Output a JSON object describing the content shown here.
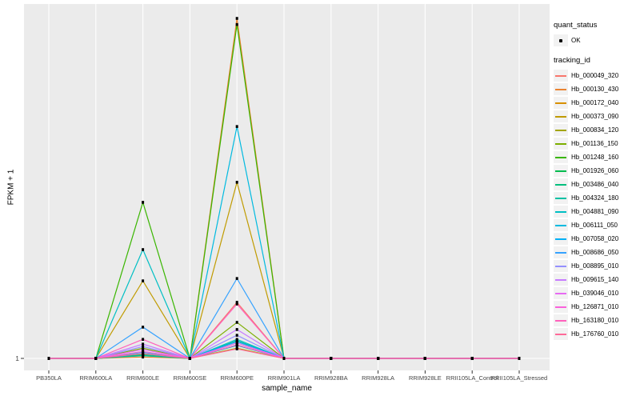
{
  "figure": {
    "y_axis_label": "FPKM + 1",
    "x_axis_label": "sample_name",
    "y_tick_label": "1"
  },
  "legend": {
    "quant_status": {
      "title": "quant_status",
      "items": [
        {
          "label": "OK",
          "symbol": "black-point"
        }
      ]
    },
    "tracking_id_title": "tracking_id"
  },
  "chart_data": {
    "type": "line",
    "title": "",
    "xlabel": "sample_name",
    "ylabel": "FPKM + 1",
    "y_axis_ticks": [
      "1"
    ],
    "y_scale_note": "Only the baseline tick '1' is labeled; series values are normalized heights where 0 = baseline (FPKM+1 = 1) and 1 = tallest peak.",
    "grid": "vertical white gridline per category plus one horizontal gridline at baseline",
    "legend_position": "right",
    "panel_bg": "#EBEBEB",
    "grid_color": "#FFFFFF",
    "point_color": "#000000",
    "categories": [
      "PB350LA",
      "RRIM600LA",
      "RRIM600LE",
      "RRIM600SE",
      "RRIM600PE",
      "RRIM901LA",
      "RRIM928BA",
      "RRIM928LA",
      "RRIM928LE",
      "RRII105LA_Control",
      "RRII105LA_Stressed"
    ],
    "series": [
      {
        "name": "Hb_000049_320",
        "color": "#F8766D",
        "values": [
          0,
          0,
          0.02,
          0,
          0.165,
          0,
          0,
          0,
          0,
          0,
          0
        ]
      },
      {
        "name": "Hb_000130_430",
        "color": "#EA8331",
        "values": [
          0,
          0,
          0.004,
          0,
          1.0,
          0,
          0,
          0,
          0,
          0,
          0
        ]
      },
      {
        "name": "Hb_000172_040",
        "color": "#D89000",
        "values": [
          0,
          0,
          0.008,
          0,
          0.04,
          0,
          0,
          0,
          0,
          0,
          0
        ]
      },
      {
        "name": "Hb_000373_090",
        "color": "#C09B00",
        "values": [
          0,
          0,
          0.228,
          0,
          0.518,
          0,
          0,
          0,
          0,
          0,
          0
        ]
      },
      {
        "name": "Hb_000834_120",
        "color": "#A3A500",
        "values": [
          0,
          0,
          0.012,
          0,
          0.03,
          0,
          0,
          0,
          0,
          0,
          0
        ]
      },
      {
        "name": "Hb_001136_150",
        "color": "#7CAE00",
        "values": [
          0,
          0,
          0.03,
          0,
          0.106,
          0,
          0,
          0,
          0,
          0,
          0
        ]
      },
      {
        "name": "Hb_001248_160",
        "color": "#39B600",
        "values": [
          0,
          0,
          0.459,
          0,
          0.982,
          0,
          0,
          0,
          0,
          0,
          0
        ]
      },
      {
        "name": "Hb_001926_060",
        "color": "#00BB4E",
        "values": [
          0,
          0,
          0.01,
          0,
          0.046,
          0,
          0,
          0,
          0,
          0,
          0
        ]
      },
      {
        "name": "Hb_003486_040",
        "color": "#00BF7D",
        "values": [
          0,
          0,
          0.01,
          0,
          0.052,
          0,
          0,
          0,
          0,
          0,
          0
        ]
      },
      {
        "name": "Hb_004324_180",
        "color": "#00C1A3",
        "values": [
          0,
          0,
          0.008,
          0,
          0.038,
          0,
          0,
          0,
          0,
          0,
          0
        ]
      },
      {
        "name": "Hb_004881_090",
        "color": "#00BFC4",
        "values": [
          0,
          0,
          0.32,
          0,
          0.056,
          0,
          0,
          0,
          0,
          0,
          0
        ]
      },
      {
        "name": "Hb_006111_050",
        "color": "#00BAE0",
        "values": [
          0,
          0,
          0.018,
          0,
          0.682,
          0,
          0,
          0,
          0,
          0,
          0
        ]
      },
      {
        "name": "Hb_007058_020",
        "color": "#00B0F6",
        "values": [
          0,
          0,
          0.014,
          0,
          0.05,
          0,
          0,
          0,
          0,
          0,
          0
        ]
      },
      {
        "name": "Hb_008686_050",
        "color": "#35A2FF",
        "values": [
          0,
          0,
          0.092,
          0,
          0.235,
          0,
          0,
          0,
          0,
          0,
          0
        ]
      },
      {
        "name": "Hb_008895_010",
        "color": "#9590FF",
        "values": [
          0,
          0,
          0.035,
          0,
          0.068,
          0,
          0,
          0,
          0,
          0,
          0
        ]
      },
      {
        "name": "Hb_009615_140",
        "color": "#C77CFF",
        "values": [
          0,
          0,
          0.042,
          0,
          0.085,
          0,
          0,
          0,
          0,
          0,
          0
        ]
      },
      {
        "name": "Hb_039046_010",
        "color": "#E76BF3",
        "values": [
          0,
          0,
          0.026,
          0,
          0.046,
          0,
          0,
          0,
          0,
          0,
          0
        ]
      },
      {
        "name": "Hb_126871_010",
        "color": "#FA62DB",
        "values": [
          0,
          0,
          0.02,
          0,
          0.04,
          0,
          0,
          0,
          0,
          0,
          0
        ]
      },
      {
        "name": "Hb_163180_010",
        "color": "#FF62BC",
        "values": [
          0,
          0,
          0.056,
          0,
          0.16,
          0,
          0,
          0,
          0,
          0,
          0
        ]
      },
      {
        "name": "Hb_176760_010",
        "color": "#FF6A98",
        "values": [
          0,
          0,
          0.014,
          0,
          0.028,
          0,
          0,
          0,
          0,
          0,
          0
        ]
      }
    ]
  }
}
